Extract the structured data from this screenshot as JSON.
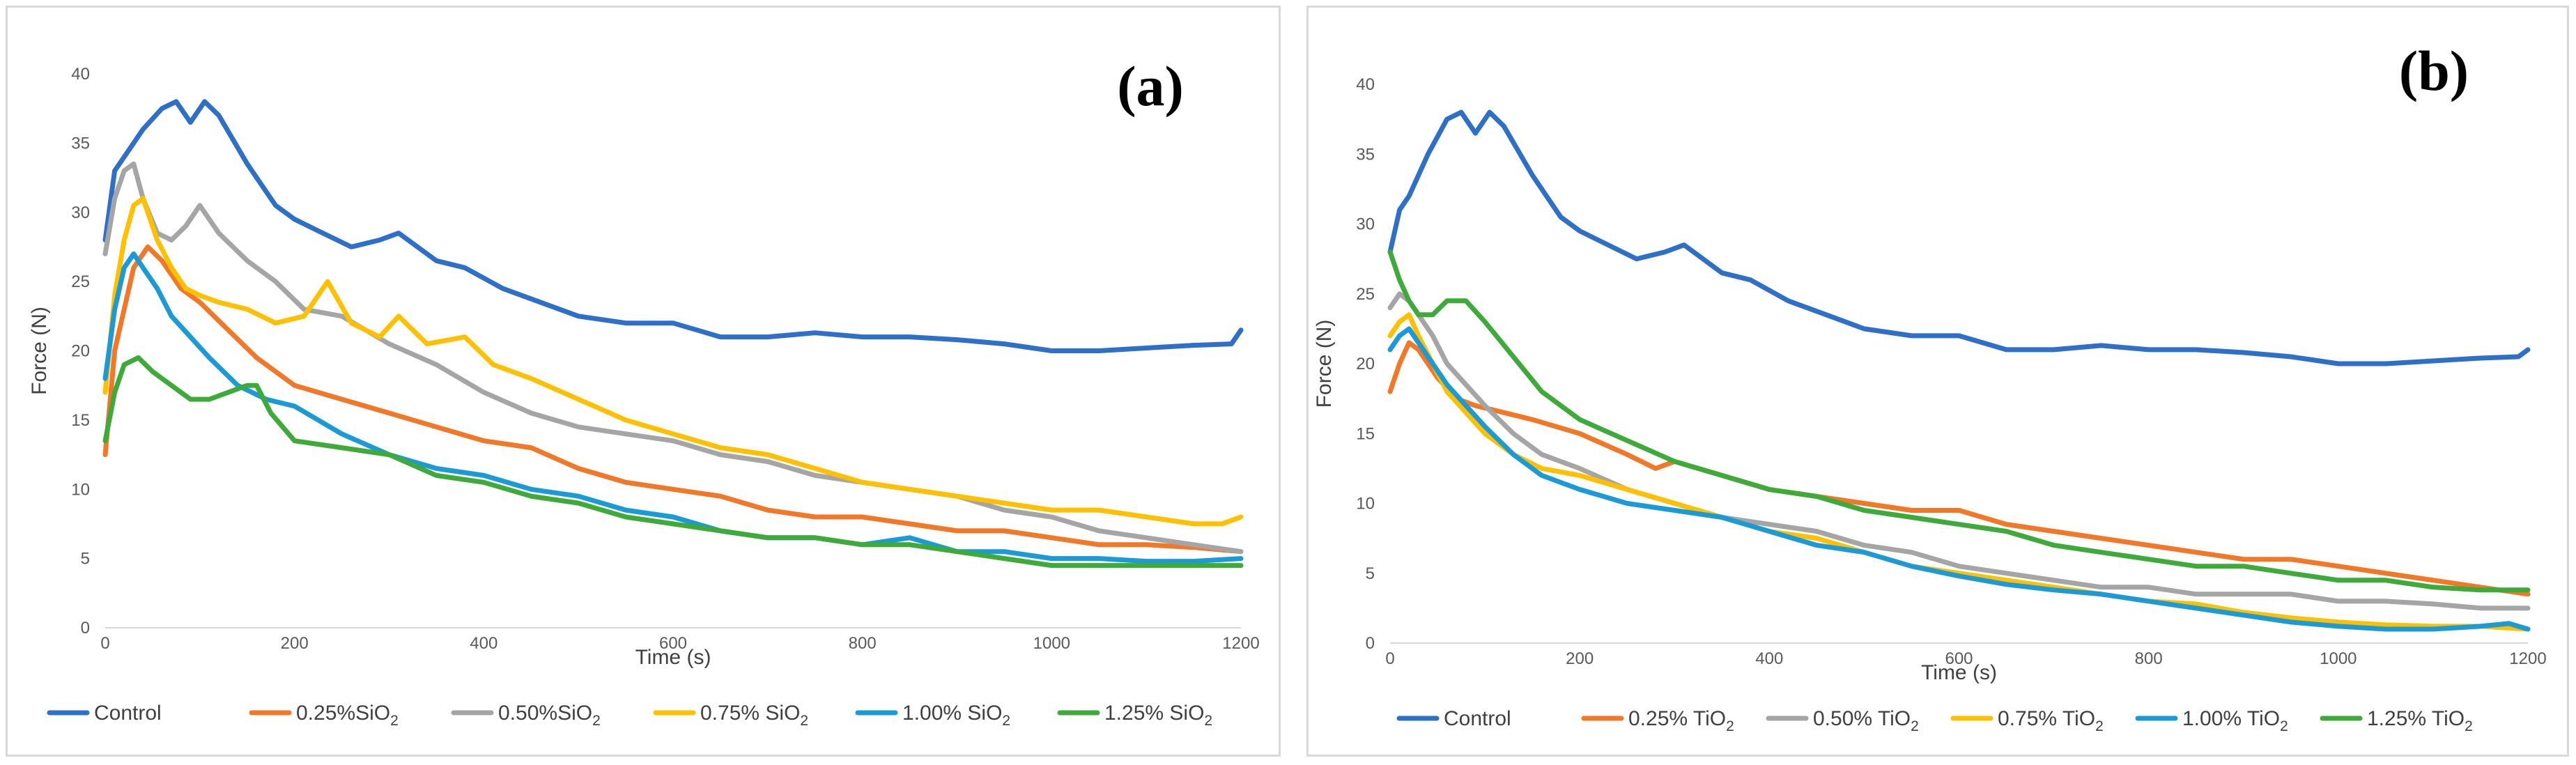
{
  "chart_data": [
    {
      "type": "line",
      "panel_label": "(a)",
      "title": "",
      "xlabel": "Time (s)",
      "ylabel": "Force (N)",
      "xlim": [
        0,
        1200
      ],
      "ylim": [
        0,
        40
      ],
      "xticks": [
        0,
        200,
        400,
        600,
        800,
        1000,
        1200
      ],
      "yticks": [
        0,
        5,
        10,
        15,
        20,
        25,
        30,
        35,
        40
      ],
      "grid": false,
      "legend_position": "bottom",
      "series": [
        {
          "name": "Control",
          "legend_main": "Control",
          "legend_sub": "",
          "color": "#2e6fc7",
          "x": [
            0,
            10,
            20,
            40,
            60,
            75,
            90,
            105,
            120,
            150,
            180,
            200,
            230,
            260,
            290,
            310,
            350,
            380,
            420,
            460,
            500,
            550,
            600,
            650,
            700,
            750,
            800,
            850,
            900,
            950,
            1000,
            1050,
            1100,
            1150,
            1190,
            1200
          ],
          "y": [
            28,
            33,
            34,
            36,
            37.5,
            38,
            36.5,
            38,
            37,
            33.5,
            30.5,
            29.5,
            28.5,
            27.5,
            28,
            28.5,
            26.5,
            26,
            24.5,
            23.5,
            22.5,
            22,
            22,
            21,
            21,
            21.3,
            21,
            21,
            20.8,
            20.5,
            20,
            20,
            20.2,
            20.4,
            20.5,
            21.5
          ]
        },
        {
          "name": "0.25% SiO2",
          "legend_main": "0.25%SiO",
          "legend_sub": "2",
          "color": "#f07828",
          "x": [
            0,
            10,
            20,
            30,
            45,
            60,
            80,
            100,
            130,
            160,
            200,
            250,
            300,
            350,
            400,
            450,
            500,
            550,
            600,
            650,
            700,
            750,
            800,
            850,
            900,
            950,
            1000,
            1050,
            1100,
            1150,
            1200
          ],
          "y": [
            12.5,
            20,
            23,
            26,
            27.5,
            26.5,
            24.5,
            23.5,
            21.5,
            19.5,
            17.5,
            16.5,
            15.5,
            14.5,
            13.5,
            13,
            11.5,
            10.5,
            10,
            9.5,
            8.5,
            8,
            8,
            7.5,
            7,
            7,
            6.5,
            6,
            6,
            5.8,
            5.5
          ]
        },
        {
          "name": "0.50% SiO2",
          "legend_main": "0.50%SiO",
          "legend_sub": "2",
          "color": "#a5a5a5",
          "x": [
            0,
            10,
            20,
            30,
            40,
            55,
            70,
            85,
            100,
            120,
            150,
            180,
            210,
            250,
            300,
            350,
            400,
            450,
            500,
            550,
            600,
            650,
            700,
            750,
            800,
            850,
            900,
            950,
            1000,
            1050,
            1100,
            1150,
            1200
          ],
          "y": [
            27,
            31,
            33,
            33.5,
            31,
            28.5,
            28,
            29,
            30.5,
            28.5,
            26.5,
            25,
            23,
            22.5,
            20.5,
            19,
            17,
            15.5,
            14.5,
            14,
            13.5,
            12.5,
            12,
            11,
            10.5,
            10,
            9.5,
            8.5,
            8,
            7,
            6.5,
            6,
            5.5
          ]
        },
        {
          "name": "0.75% SiO2",
          "legend_main": "0.75% SiO",
          "legend_sub": "2",
          "color": "#ffc000",
          "x": [
            0,
            10,
            20,
            30,
            40,
            55,
            70,
            85,
            100,
            120,
            150,
            180,
            210,
            235,
            260,
            290,
            310,
            340,
            380,
            410,
            450,
            500,
            550,
            600,
            650,
            700,
            750,
            800,
            850,
            900,
            950,
            1000,
            1050,
            1100,
            1150,
            1180,
            1200
          ],
          "y": [
            17,
            24,
            28,
            30.5,
            31,
            28,
            26,
            24.5,
            24,
            23.5,
            23,
            22,
            22.5,
            25,
            22,
            21,
            22.5,
            20.5,
            21,
            19,
            18,
            16.5,
            15,
            14,
            13,
            12.5,
            11.5,
            10.5,
            10,
            9.5,
            9,
            8.5,
            8.5,
            8,
            7.5,
            7.5,
            8
          ]
        },
        {
          "name": "1.00% SiO2",
          "legend_main": "1.00% SiO",
          "legend_sub": "2",
          "color": "#1b9ad6",
          "x": [
            0,
            10,
            20,
            30,
            40,
            55,
            70,
            90,
            110,
            140,
            170,
            200,
            250,
            300,
            350,
            400,
            450,
            500,
            550,
            600,
            650,
            700,
            750,
            800,
            850,
            900,
            950,
            1000,
            1050,
            1100,
            1150,
            1200
          ],
          "y": [
            18,
            23,
            26,
            27,
            26,
            24.5,
            22.5,
            21,
            19.5,
            17.5,
            16.5,
            16,
            14,
            12.5,
            11.5,
            11,
            10,
            9.5,
            8.5,
            8,
            7,
            6.5,
            6.5,
            6,
            6.5,
            5.5,
            5.5,
            5,
            5,
            4.8,
            4.8,
            5
          ]
        },
        {
          "name": "1.25% SiO2",
          "legend_main": "1.25% SiO",
          "legend_sub": "2",
          "color": "#3eaa3a",
          "x": [
            0,
            10,
            20,
            35,
            50,
            70,
            90,
            110,
            130,
            150,
            160,
            175,
            200,
            250,
            300,
            350,
            400,
            450,
            500,
            550,
            600,
            650,
            700,
            750,
            800,
            850,
            900,
            950,
            1000,
            1050,
            1100,
            1150,
            1200
          ],
          "y": [
            13.5,
            17,
            19,
            19.5,
            18.5,
            17.5,
            16.5,
            16.5,
            17,
            17.5,
            17.5,
            15.5,
            13.5,
            13,
            12.5,
            11,
            10.5,
            9.5,
            9,
            8,
            7.5,
            7,
            6.5,
            6.5,
            6,
            6,
            5.5,
            5,
            4.5,
            4.5,
            4.5,
            4.5,
            4.5
          ]
        }
      ]
    },
    {
      "type": "line",
      "panel_label": "(b)",
      "title": "",
      "xlabel": "Time (s)",
      "ylabel": "Force (N)",
      "xlim": [
        0,
        1200
      ],
      "ylim": [
        0,
        40
      ],
      "xticks": [
        0,
        200,
        400,
        600,
        800,
        1000,
        1200
      ],
      "yticks": [
        0,
        5,
        10,
        15,
        20,
        25,
        30,
        35,
        40
      ],
      "grid": false,
      "legend_position": "bottom",
      "series": [
        {
          "name": "Control",
          "legend_main": "Control",
          "legend_sub": "",
          "color": "#2e6fc7",
          "x": [
            0,
            10,
            20,
            40,
            60,
            75,
            90,
            105,
            120,
            150,
            180,
            200,
            230,
            260,
            290,
            310,
            350,
            380,
            420,
            460,
            500,
            550,
            600,
            650,
            700,
            750,
            800,
            850,
            900,
            950,
            1000,
            1050,
            1100,
            1150,
            1190,
            1200
          ],
          "y": [
            28,
            31,
            32,
            35,
            37.5,
            38,
            36.5,
            38,
            37,
            33.5,
            30.5,
            29.5,
            28.5,
            27.5,
            28,
            28.5,
            26.5,
            26,
            24.5,
            23.5,
            22.5,
            22,
            22,
            21,
            21,
            21.3,
            21,
            21,
            20.8,
            20.5,
            20,
            20,
            20.2,
            20.4,
            20.5,
            21
          ]
        },
        {
          "name": "0.25% TiO2",
          "legend_main": "0.25% TiO",
          "legend_sub": "2",
          "color": "#f07828",
          "x": [
            0,
            10,
            20,
            30,
            50,
            70,
            90,
            120,
            150,
            200,
            250,
            280,
            300,
            350,
            400,
            450,
            500,
            550,
            600,
            650,
            700,
            750,
            800,
            850,
            900,
            950,
            1000,
            1050,
            1100,
            1150,
            1200
          ],
          "y": [
            18,
            20,
            21.5,
            21,
            19,
            17.5,
            17,
            16.5,
            16,
            15,
            13.5,
            12.5,
            13,
            12,
            11,
            10.5,
            10,
            9.5,
            9.5,
            8.5,
            8,
            7.5,
            7,
            6.5,
            6,
            6,
            5.5,
            5,
            4.5,
            4,
            3.5
          ]
        },
        {
          "name": "0.50% TiO2",
          "legend_main": "0.50% TiO",
          "legend_sub": "2",
          "color": "#a5a5a5",
          "x": [
            0,
            10,
            20,
            30,
            45,
            60,
            80,
            100,
            130,
            160,
            200,
            250,
            300,
            350,
            400,
            450,
            500,
            550,
            600,
            650,
            700,
            750,
            800,
            850,
            900,
            950,
            1000,
            1050,
            1100,
            1150,
            1200
          ],
          "y": [
            24,
            25,
            24.5,
            23.5,
            22,
            20,
            18.5,
            17,
            15,
            13.5,
            12.5,
            11,
            10,
            9,
            8.5,
            8,
            7,
            6.5,
            5.5,
            5,
            4.5,
            4,
            4,
            3.5,
            3.5,
            3.5,
            3,
            3,
            2.8,
            2.5,
            2.5
          ]
        },
        {
          "name": "0.75% TiO2",
          "legend_main": "0.75% TiO",
          "legend_sub": "2",
          "color": "#ffc000",
          "x": [
            0,
            10,
            20,
            30,
            45,
            60,
            80,
            100,
            130,
            160,
            200,
            250,
            300,
            350,
            400,
            450,
            500,
            550,
            600,
            650,
            700,
            750,
            800,
            850,
            900,
            950,
            1000,
            1050,
            1100,
            1150,
            1200
          ],
          "y": [
            22,
            23,
            23.5,
            22,
            20,
            18,
            16.5,
            15,
            13.5,
            12.5,
            12,
            11,
            10,
            9,
            8,
            7.5,
            6.5,
            5.5,
            5,
            4.5,
            4,
            3.5,
            3,
            2.8,
            2.2,
            1.8,
            1.5,
            1.3,
            1.2,
            1.2,
            1
          ]
        },
        {
          "name": "1.00% TiO2",
          "legend_main": "1.00% TiO",
          "legend_sub": "2",
          "color": "#1b9ad6",
          "x": [
            0,
            10,
            20,
            30,
            45,
            60,
            80,
            100,
            130,
            160,
            200,
            250,
            300,
            350,
            400,
            450,
            500,
            550,
            600,
            650,
            700,
            750,
            800,
            850,
            900,
            950,
            1000,
            1050,
            1100,
            1150,
            1180,
            1200
          ],
          "y": [
            21,
            22,
            22.5,
            21.5,
            20,
            18.5,
            17,
            15.5,
            13.5,
            12,
            11,
            10,
            9.5,
            9,
            8,
            7,
            6.5,
            5.5,
            4.8,
            4.2,
            3.8,
            3.5,
            3,
            2.5,
            2,
            1.5,
            1.2,
            1,
            1,
            1.2,
            1.4,
            1
          ]
        },
        {
          "name": "1.25% TiO2",
          "legend_main": "1.25% TiO",
          "legend_sub": "2",
          "color": "#3eaa3a",
          "x": [
            0,
            10,
            20,
            30,
            45,
            60,
            80,
            100,
            130,
            160,
            200,
            250,
            300,
            350,
            400,
            450,
            500,
            550,
            600,
            650,
            700,
            750,
            800,
            850,
            900,
            950,
            1000,
            1050,
            1100,
            1150,
            1200
          ],
          "y": [
            28,
            26,
            24.5,
            23.5,
            23.5,
            24.5,
            24.5,
            23,
            20.5,
            18,
            16,
            14.5,
            13,
            12,
            11,
            10.5,
            9.5,
            9,
            8.5,
            8,
            7,
            6.5,
            6,
            5.5,
            5.5,
            5,
            4.5,
            4.5,
            4,
            3.8,
            3.8
          ]
        }
      ]
    }
  ]
}
